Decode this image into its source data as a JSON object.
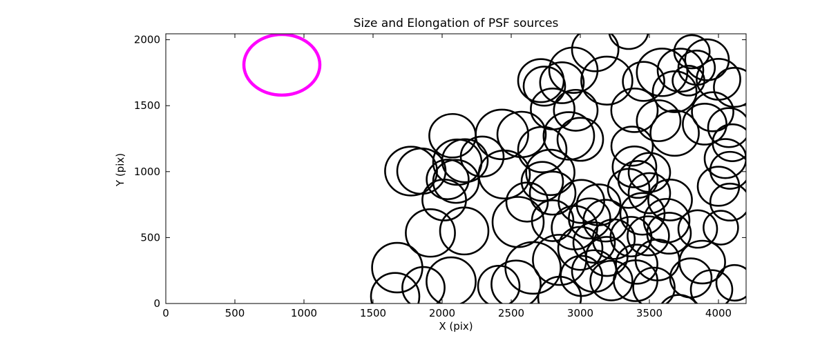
{
  "title": "Size and Elongation of PSF sources",
  "axes": {
    "xlabel": "X (pix)",
    "ylabel": "Y (pix)"
  },
  "colors": {
    "background": "#ffffff",
    "ellipse_stroke": "#000000",
    "highlight_stroke": "#ff00ff",
    "axis": "#000000"
  },
  "chart_data": {
    "type": "scatter",
    "marker_style": "ellipse-outline",
    "title": "Size and Elongation of PSF sources",
    "xlabel": "X (pix)",
    "ylabel": "Y (pix)",
    "xlim": [
      0,
      4200
    ],
    "ylim": [
      0,
      2045
    ],
    "xticks": [
      0,
      500,
      1000,
      1500,
      2000,
      2500,
      3000,
      3500,
      4000
    ],
    "yticks": [
      0,
      500,
      1000,
      1500,
      2000
    ],
    "grid": false,
    "legend": "none",
    "highlight_ellipse": {
      "x": 840,
      "y": 1810,
      "rx": 275,
      "ry": 230,
      "color": "#ff00ff",
      "linewidth": 4.5
    },
    "ellipse_linewidth": 2.6,
    "ellipses": [
      [
        1915,
        535,
        178,
        180
      ],
      [
        2160,
        550,
        175,
        178
      ],
      [
        1675,
        272,
        182,
        188
      ],
      [
        1660,
        52,
        175,
        180
      ],
      [
        1865,
        120,
        153,
        157
      ],
      [
        2065,
        167,
        178,
        183
      ],
      [
        2410,
        131,
        150,
        155
      ],
      [
        2535,
        146,
        178,
        180
      ],
      [
        2550,
        618,
        185,
        190
      ],
      [
        2658,
        270,
        200,
        196
      ],
      [
        2850,
        331,
        193,
        190
      ],
      [
        2850,
        43,
        155,
        160
      ],
      [
        2800,
        628,
        150,
        155
      ],
      [
        2958,
        575,
        165,
        165
      ],
      [
        3067,
        645,
        150,
        152
      ],
      [
        3183,
        628,
        160,
        158
      ],
      [
        3242,
        488,
        152,
        150
      ],
      [
        3100,
        462,
        150,
        153
      ],
      [
        3000,
        418,
        160,
        163
      ],
      [
        3192,
        357,
        150,
        148
      ],
      [
        3100,
        246,
        160,
        158
      ],
      [
        3008,
        209,
        150,
        152
      ],
      [
        3225,
        174,
        152,
        150
      ],
      [
        3450,
        680,
        160,
        158
      ],
      [
        3625,
        628,
        165,
        165
      ],
      [
        3642,
        533,
        158,
        155
      ],
      [
        3492,
        513,
        150,
        148
      ],
      [
        3367,
        507,
        148,
        150
      ],
      [
        3558,
        330,
        158,
        155
      ],
      [
        3408,
        298,
        150,
        148
      ],
      [
        3400,
        173,
        158,
        155
      ],
      [
        3533,
        120,
        150,
        152
      ],
      [
        3850,
        565,
        140,
        142
      ],
      [
        4017,
        575,
        125,
        128
      ],
      [
        3883,
        314,
        165,
        162
      ],
      [
        3800,
        194,
        150,
        148
      ],
      [
        3950,
        105,
        150,
        148
      ],
      [
        4117,
        157,
        132,
        135
      ],
      [
        3715,
        -85,
        150,
        150
      ],
      [
        2433,
        1282,
        190,
        188
      ],
      [
        2575,
        1282,
        175,
        172
      ],
      [
        2290,
        1114,
        155,
        152
      ],
      [
        2450,
        978,
        185,
        182
      ],
      [
        2725,
        1167,
        175,
        172
      ],
      [
        2783,
        994,
        175,
        172
      ],
      [
        2917,
        1271,
        183,
        180
      ],
      [
        3000,
        1245,
        165,
        163
      ],
      [
        2800,
        1475,
        158,
        155
      ],
      [
        2967,
        1465,
        158,
        155
      ],
      [
        2800,
        837,
        165,
        163
      ],
      [
        2725,
        926,
        150,
        148
      ],
      [
        3008,
        774,
        165,
        163
      ],
      [
        2615,
        769,
        150,
        148
      ],
      [
        3133,
        748,
        158,
        155
      ],
      [
        2075,
        1272,
        168,
        165
      ],
      [
        1775,
        1004,
        188,
        185
      ],
      [
        1850,
        1004,
        175,
        172
      ],
      [
        2110,
        1072,
        175,
        172
      ],
      [
        2165,
        1083,
        165,
        163
      ],
      [
        2040,
        941,
        152,
        150
      ],
      [
        2100,
        926,
        165,
        163
      ],
      [
        2015,
        785,
        158,
        155
      ],
      [
        3392,
        1465,
        168,
        165
      ],
      [
        3567,
        1386,
        158,
        155
      ],
      [
        3683,
        1292,
        175,
        172
      ],
      [
        3375,
        1193,
        150,
        148
      ],
      [
        3392,
        1036,
        158,
        155
      ],
      [
        3500,
        994,
        150,
        148
      ],
      [
        3417,
        941,
        142,
        140
      ],
      [
        3350,
        873,
        150,
        148
      ],
      [
        3500,
        837,
        150,
        152
      ],
      [
        3650,
        785,
        158,
        155
      ],
      [
        3900,
        1360,
        158,
        155
      ],
      [
        3958,
        1454,
        150,
        148
      ],
      [
        4075,
        1334,
        150,
        148
      ],
      [
        4100,
        1219,
        142,
        140
      ],
      [
        4050,
        1099,
        150,
        148
      ],
      [
        4083,
        1010,
        142,
        140
      ],
      [
        4000,
        889,
        150,
        148
      ],
      [
        4083,
        769,
        142,
        140
      ],
      [
        2715,
        1690,
        165,
        163
      ],
      [
        2740,
        1648,
        150,
        148
      ],
      [
        3108,
        1926,
        168,
        165
      ],
      [
        2950,
        1769,
        175,
        172
      ],
      [
        3192,
        1690,
        185,
        182
      ],
      [
        2867,
        1674,
        158,
        155
      ],
      [
        3350,
        2070,
        142,
        140
      ],
      [
        3458,
        1684,
        150,
        148
      ],
      [
        3592,
        1753,
        183,
        180
      ],
      [
        3725,
        1769,
        165,
        163
      ],
      [
        3683,
        1606,
        158,
        155
      ],
      [
        3808,
        1909,
        128,
        126
      ],
      [
        3917,
        1848,
        158,
        155
      ],
      [
        3842,
        1788,
        132,
        130
      ],
      [
        4000,
        1700,
        158,
        155
      ],
      [
        4117,
        1639,
        150,
        148
      ],
      [
        3783,
        1690,
        115,
        113
      ]
    ]
  }
}
